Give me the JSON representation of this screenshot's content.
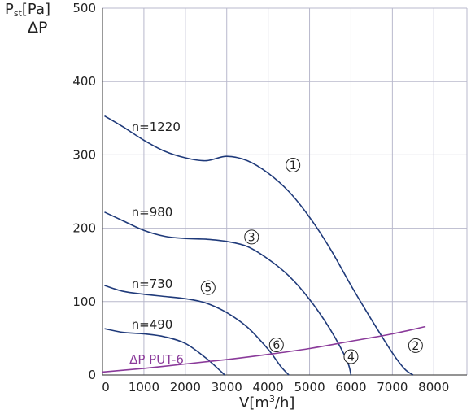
{
  "chart_data": {
    "type": "line",
    "y_axis_title": {
      "symbol": "P",
      "subscript": "st",
      "unit": "[Pa]",
      "second_line": "ΔP"
    },
    "x_axis_title": {
      "text": "V[m",
      "superscript": "3",
      "suffix": "/h]"
    },
    "xlim": [
      0,
      8800
    ],
    "ylim": [
      0,
      500
    ],
    "x_ticks": [
      0,
      1000,
      2000,
      3000,
      4000,
      5000,
      6000,
      7000,
      8000
    ],
    "y_ticks": [
      0,
      100,
      200,
      300,
      400,
      500
    ],
    "grid": true,
    "colors": {
      "fan_curve": "#1f3a7a",
      "pressure_loss": "#8a3a9a",
      "grid": "#b8b8cc"
    },
    "series": [
      {
        "name": "n=1220",
        "color": "#1f3a7a",
        "x": [
          50,
          500,
          1000,
          1500,
          2000,
          2500,
          3000,
          3500,
          4000,
          4500,
          5000,
          5500,
          6000,
          6500,
          7000,
          7300,
          7500
        ],
        "y": [
          353,
          338,
          320,
          305,
          296,
          292,
          298,
          292,
          275,
          250,
          215,
          172,
          122,
          75,
          30,
          8,
          0
        ]
      },
      {
        "name": "n=980",
        "color": "#1f3a7a",
        "x": [
          50,
          500,
          1000,
          1500,
          2000,
          2500,
          3000,
          3500,
          4000,
          4500,
          5000,
          5500,
          5900,
          6000
        ],
        "y": [
          222,
          210,
          197,
          189,
          186,
          185,
          182,
          175,
          158,
          135,
          103,
          62,
          20,
          0
        ]
      },
      {
        "name": "n=730",
        "color": "#1f3a7a",
        "x": [
          50,
          500,
          1000,
          1500,
          2000,
          2500,
          3000,
          3500,
          4000,
          4300,
          4500
        ],
        "y": [
          122,
          114,
          110,
          107,
          104,
          98,
          85,
          65,
          35,
          12,
          0
        ]
      },
      {
        "name": "n=490",
        "color": "#1f3a7a",
        "x": [
          50,
          500,
          1000,
          1500,
          2000,
          2500,
          2800,
          2950
        ],
        "y": [
          63,
          58,
          56,
          52,
          43,
          23,
          8,
          0
        ]
      },
      {
        "name": "ΔP PUT-6",
        "color": "#8a3a9a",
        "x": [
          0,
          1000,
          2000,
          3000,
          4000,
          5000,
          6000,
          7000,
          7800
        ],
        "y": [
          4,
          9,
          15,
          21,
          28,
          36,
          46,
          56,
          66
        ]
      }
    ],
    "curve_labels": [
      {
        "text": "n=1220",
        "x": 700,
        "y": 338
      },
      {
        "text": "n=980",
        "x": 700,
        "y": 222
      },
      {
        "text": "n=730",
        "x": 700,
        "y": 124
      },
      {
        "text": "n=490",
        "x": 700,
        "y": 69
      }
    ],
    "pressure_label": {
      "text": "ΔP PUT-6",
      "x": 650,
      "y": 21
    },
    "markers": [
      {
        "text": "1",
        "x": 4600,
        "y": 286
      },
      {
        "text": "2",
        "x": 7560,
        "y": 40
      },
      {
        "text": "3",
        "x": 3600,
        "y": 188
      },
      {
        "text": "4",
        "x": 6000,
        "y": 25
      },
      {
        "text": "5",
        "x": 2550,
        "y": 119
      },
      {
        "text": "6",
        "x": 4200,
        "y": 41
      }
    ]
  }
}
